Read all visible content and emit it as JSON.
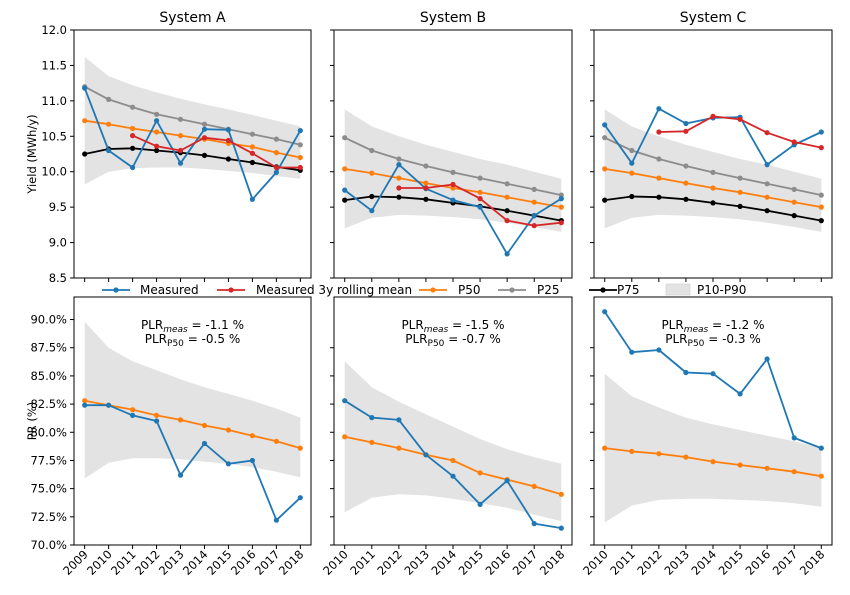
{
  "legend": [
    {
      "key": "measured",
      "label": "Measured"
    },
    {
      "key": "rolling",
      "label": "Measured 3y rolling mean"
    },
    {
      "key": "p50",
      "label": "P50"
    },
    {
      "key": "p25",
      "label": "P25"
    },
    {
      "key": "p75",
      "label": "P75"
    },
    {
      "key": "band",
      "label": "P10-P90"
    }
  ],
  "colors": {
    "measured": "#1f77b4",
    "rolling": "#d62728",
    "p50": "#ff7f0e",
    "p25": "#8c8c8c",
    "p75": "#000000",
    "band": "#e3e3e3"
  },
  "chart_data": [
    {
      "type": "line",
      "title": "System A",
      "ylabel": "Yield (MWh/y)",
      "ylim": [
        8.5,
        12.0
      ],
      "yticks": [
        "8.5",
        "9.0",
        "9.5",
        "10.0",
        "10.5",
        "11.0",
        "11.5",
        "12.0"
      ],
      "x": [
        2009,
        2010,
        2011,
        2012,
        2013,
        2014,
        2015,
        2016,
        2017,
        2018
      ],
      "series": [
        {
          "name": "Measured",
          "key": "measured",
          "values": [
            11.18,
            10.3,
            10.06,
            10.72,
            10.12,
            10.6,
            10.59,
            9.61,
            9.99,
            10.58
          ]
        },
        {
          "name": "Measured 3y rolling mean",
          "key": "rolling",
          "values": [
            null,
            null,
            10.51,
            10.36,
            10.3,
            10.48,
            10.44,
            10.26,
            10.06,
            10.06
          ]
        },
        {
          "name": "P50",
          "key": "p50",
          "values": [
            10.72,
            10.67,
            10.61,
            10.56,
            10.51,
            10.46,
            10.4,
            10.35,
            10.27,
            10.2
          ]
        },
        {
          "name": "P25",
          "key": "p25",
          "values": [
            11.2,
            11.02,
            10.91,
            10.81,
            10.74,
            10.67,
            10.6,
            10.53,
            10.46,
            10.38
          ]
        },
        {
          "name": "P75",
          "key": "p75",
          "values": [
            10.25,
            10.32,
            10.33,
            10.3,
            10.27,
            10.23,
            10.18,
            10.13,
            10.07,
            10.02
          ]
        }
      ],
      "band": {
        "name": "P10-P90",
        "low": [
          9.82,
          10.0,
          10.05,
          10.06,
          10.06,
          10.04,
          10.01,
          9.98,
          9.94,
          9.9
        ],
        "high": [
          11.62,
          11.35,
          11.22,
          11.12,
          11.03,
          10.95,
          10.88,
          10.8,
          10.72,
          10.64
        ]
      }
    },
    {
      "type": "line",
      "title": "System B",
      "ylim": [
        8.5,
        12.0
      ],
      "x": [
        2010,
        2011,
        2012,
        2013,
        2014,
        2015,
        2016,
        2017,
        2018
      ],
      "series": [
        {
          "name": "Measured",
          "key": "measured",
          "values": [
            9.74,
            9.45,
            10.1,
            9.76,
            9.6,
            9.5,
            8.84,
            9.38,
            9.62
          ]
        },
        {
          "name": "Measured 3y rolling mean",
          "key": "rolling",
          "values": [
            null,
            null,
            9.77,
            9.77,
            9.82,
            9.62,
            9.31,
            9.24,
            9.28
          ]
        },
        {
          "name": "P50",
          "key": "p50",
          "values": [
            10.04,
            9.98,
            9.91,
            9.84,
            9.77,
            9.71,
            9.64,
            9.57,
            9.5
          ]
        },
        {
          "name": "P25",
          "key": "p25",
          "values": [
            10.48,
            10.3,
            10.18,
            10.08,
            9.99,
            9.91,
            9.83,
            9.75,
            9.67
          ]
        },
        {
          "name": "P75",
          "key": "p75",
          "values": [
            9.6,
            9.65,
            9.64,
            9.61,
            9.56,
            9.51,
            9.45,
            9.38,
            9.31
          ]
        }
      ],
      "band": {
        "name": "P10-P90",
        "low": [
          9.2,
          9.35,
          9.39,
          9.38,
          9.36,
          9.33,
          9.28,
          9.22,
          9.15
        ],
        "high": [
          10.88,
          10.64,
          10.5,
          10.38,
          10.28,
          10.18,
          10.1,
          10.0,
          9.9
        ]
      }
    },
    {
      "type": "line",
      "title": "System C",
      "ylim": [
        8.5,
        12.0
      ],
      "x": [
        2010,
        2011,
        2012,
        2013,
        2014,
        2015,
        2016,
        2017,
        2018
      ],
      "series": [
        {
          "name": "Measured",
          "key": "measured",
          "values": [
            10.66,
            10.12,
            10.89,
            10.68,
            10.76,
            10.77,
            10.1,
            10.38,
            10.56
          ]
        },
        {
          "name": "Measured 3y rolling mean",
          "key": "rolling",
          "values": [
            null,
            null,
            10.56,
            10.57,
            10.78,
            10.74,
            10.55,
            10.42,
            10.34
          ]
        },
        {
          "name": "P50",
          "key": "p50",
          "values": [
            10.04,
            9.98,
            9.91,
            9.84,
            9.77,
            9.71,
            9.64,
            9.57,
            9.5
          ]
        },
        {
          "name": "P25",
          "key": "p25",
          "values": [
            10.48,
            10.3,
            10.18,
            10.08,
            9.99,
            9.91,
            9.83,
            9.75,
            9.67
          ]
        },
        {
          "name": "P75",
          "key": "p75",
          "values": [
            9.6,
            9.65,
            9.64,
            9.61,
            9.56,
            9.51,
            9.45,
            9.38,
            9.31
          ]
        }
      ],
      "band": {
        "name": "P10-P90",
        "low": [
          9.2,
          9.35,
          9.39,
          9.38,
          9.36,
          9.33,
          9.28,
          9.22,
          9.15
        ],
        "high": [
          10.88,
          10.64,
          10.5,
          10.38,
          10.28,
          10.18,
          10.1,
          10.0,
          9.9
        ]
      }
    },
    {
      "type": "line",
      "ylabel": "PR (%)",
      "ylim": [
        70.0,
        92.0
      ],
      "yticks": [
        "70.0%",
        "72.5%",
        "75.0%",
        "77.5%",
        "80.0%",
        "82.5%",
        "85.0%",
        "87.5%",
        "90.0%"
      ],
      "x": [
        2009,
        2010,
        2011,
        2012,
        2013,
        2014,
        2015,
        2016,
        2017,
        2018
      ],
      "annotation": {
        "line1_base": "PLR",
        "line1_sub": "meas",
        "line1_value": " = -1.1 %",
        "line2_base": "PLR",
        "line2_sub": "P50",
        "line2_value": " = -0.5 %"
      },
      "series": [
        {
          "name": "Measured",
          "key": "measured",
          "values": [
            82.4,
            82.4,
            81.5,
            81.0,
            76.2,
            79.0,
            77.2,
            77.5,
            72.2,
            74.2
          ]
        },
        {
          "name": "P50",
          "key": "p50",
          "values": [
            82.8,
            82.4,
            82.0,
            81.5,
            81.1,
            80.6,
            80.2,
            79.7,
            79.2,
            78.6
          ]
        }
      ],
      "band": {
        "name": "P10-P90",
        "low": [
          75.9,
          77.3,
          77.7,
          77.7,
          77.6,
          77.4,
          77.2,
          76.9,
          76.5,
          76.0
        ],
        "high": [
          89.8,
          87.5,
          86.3,
          85.5,
          84.7,
          84.0,
          83.4,
          82.8,
          82.1,
          81.3
        ]
      }
    },
    {
      "type": "line",
      "ylim": [
        70.0,
        92.0
      ],
      "x": [
        2010,
        2011,
        2012,
        2013,
        2014,
        2015,
        2016,
        2017,
        2018
      ],
      "annotation": {
        "line1_base": "PLR",
        "line1_sub": "meas",
        "line1_value": " = -1.5 %",
        "line2_base": "PLR",
        "line2_sub": "P50",
        "line2_value": " = -0.7 %"
      },
      "series": [
        {
          "name": "Measured",
          "key": "measured",
          "values": [
            82.8,
            81.3,
            81.1,
            78.0,
            76.1,
            73.6,
            75.7,
            71.9,
            71.5
          ]
        },
        {
          "name": "P50",
          "key": "p50",
          "values": [
            79.6,
            79.1,
            78.6,
            78.0,
            77.5,
            76.4,
            75.8,
            75.2,
            74.5
          ]
        }
      ],
      "band": {
        "name": "P10-P90",
        "low": [
          72.9,
          74.2,
          74.5,
          74.4,
          74.1,
          73.7,
          73.3,
          72.7,
          72.1
        ],
        "high": [
          86.3,
          84.0,
          82.7,
          81.6,
          80.5,
          79.4,
          78.5,
          77.8,
          77.2
        ]
      }
    },
    {
      "type": "line",
      "ylim": [
        70.0,
        92.0
      ],
      "x": [
        2010,
        2011,
        2012,
        2013,
        2014,
        2015,
        2016,
        2017,
        2018
      ],
      "annotation": {
        "line1_base": "PLR",
        "line1_sub": "meas",
        "line1_value": " = -1.2 %",
        "line2_base": "PLR",
        "line2_sub": "P50",
        "line2_value": " = -0.3 %"
      },
      "series": [
        {
          "name": "Measured",
          "key": "measured",
          "values": [
            90.7,
            87.1,
            87.3,
            85.3,
            85.2,
            83.4,
            86.5,
            79.5,
            78.6
          ]
        },
        {
          "name": "P50",
          "key": "p50",
          "values": [
            78.6,
            78.3,
            78.1,
            77.8,
            77.4,
            77.1,
            76.8,
            76.5,
            76.1
          ]
        }
      ],
      "band": {
        "name": "P10-P90",
        "low": [
          72.0,
          73.5,
          74.0,
          74.1,
          74.1,
          74.0,
          73.9,
          73.7,
          73.4
        ],
        "high": [
          85.2,
          83.2,
          82.2,
          81.3,
          80.7,
          80.2,
          79.7,
          79.2,
          78.6
        ]
      }
    }
  ]
}
